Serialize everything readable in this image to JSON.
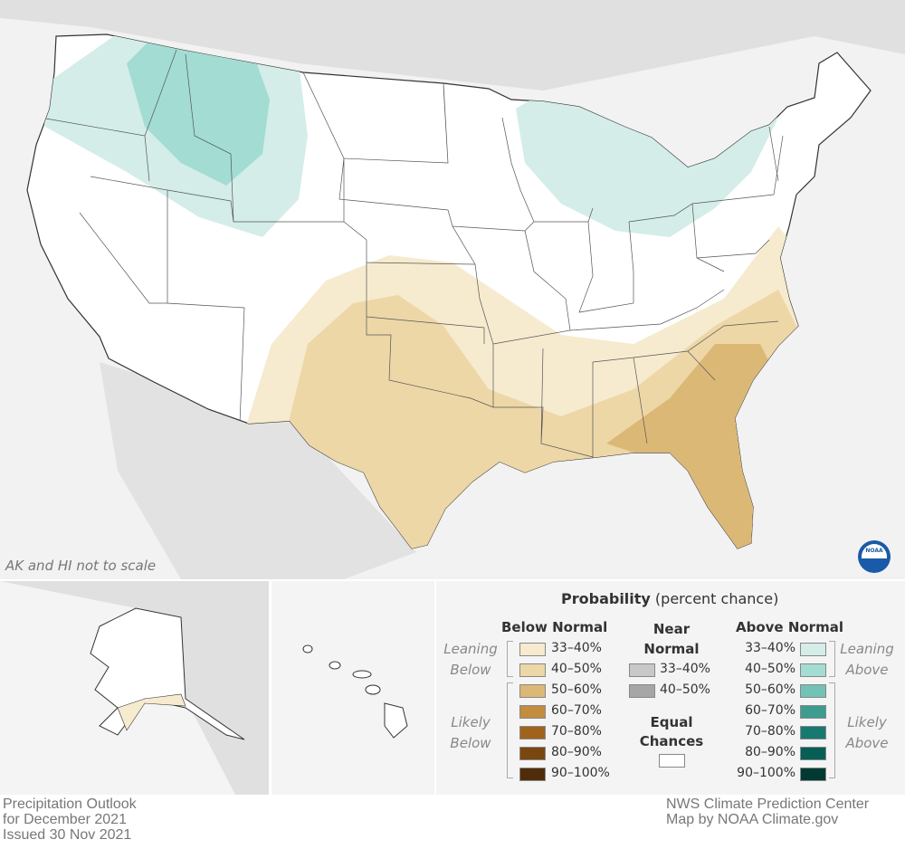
{
  "map_note": "AK and HI not to scale",
  "legend": {
    "title_bold": "Probability",
    "title_rest": " (percent chance)",
    "below_header": "Below Normal",
    "near_header_1": "Near",
    "near_header_2": "Normal",
    "above_header": "Above Normal",
    "equal_1": "Equal",
    "equal_2": "Chances",
    "leaning_below": [
      "Leaning",
      "Below"
    ],
    "likely_below": [
      "Likely",
      "Below"
    ],
    "leaning_above": [
      "Leaning",
      "Above"
    ],
    "likely_above": [
      "Likely",
      "Above"
    ],
    "below": [
      {
        "label": "33–40%",
        "color": "#f6ebcf"
      },
      {
        "label": "40–50%",
        "color": "#edd7a7"
      },
      {
        "label": "50–60%",
        "color": "#dcb877"
      },
      {
        "label": "60–70%",
        "color": "#c48c3e"
      },
      {
        "label": "70–80%",
        "color": "#a0631c"
      },
      {
        "label": "80–90%",
        "color": "#7a4710"
      },
      {
        "label": "90–100%",
        "color": "#4f2d0a"
      }
    ],
    "near": [
      {
        "label": "33–40%",
        "color": "#c8c8c8"
      },
      {
        "label": "40–50%",
        "color": "#a6a6a6"
      }
    ],
    "equal_color": "#ffffff",
    "above": [
      {
        "label": "33–40%",
        "color": "#d4ede9"
      },
      {
        "label": "40–50%",
        "color": "#a3dcd2"
      },
      {
        "label": "50–60%",
        "color": "#72c2b5"
      },
      {
        "label": "60–70%",
        "color": "#3e9b90"
      },
      {
        "label": "70–80%",
        "color": "#177a72"
      },
      {
        "label": "80–90%",
        "color": "#065e55"
      },
      {
        "label": "90–100%",
        "color": "#023a33"
      }
    ]
  },
  "footer_left": [
    "Precipitation Outlook",
    "for December 2021",
    "Issued 30 Nov 2021"
  ],
  "footer_right": [
    "NWS Climate Prediction Center",
    "Map by NOAA Climate.gov"
  ],
  "logo": "NOAA"
}
